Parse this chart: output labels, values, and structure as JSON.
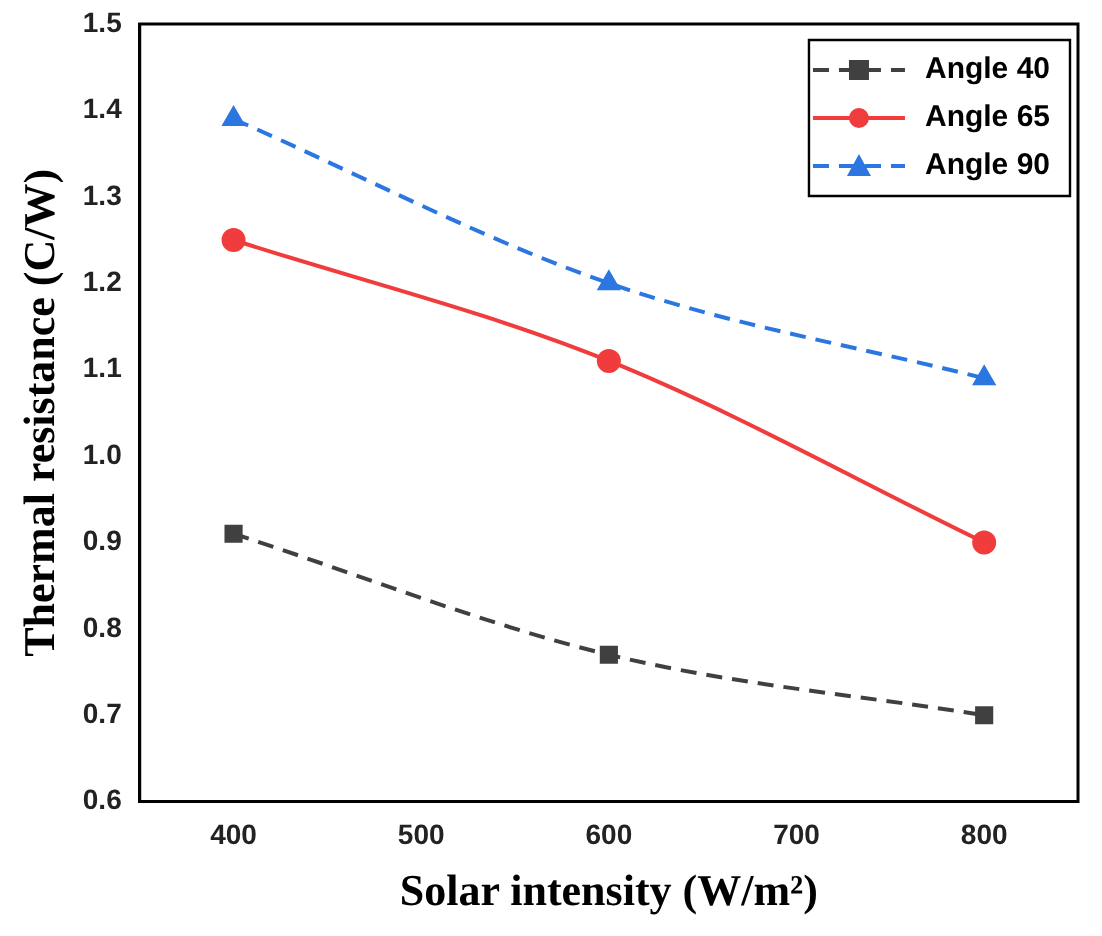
{
  "chart_data": {
    "type": "line",
    "xlabel": "Solar intensity (W/m²)",
    "ylabel": "Thermal resistance (C/W)",
    "x": [
      400,
      600,
      800
    ],
    "series": [
      {
        "name": "Angle 40",
        "color": "#404040",
        "values": [
          0.91,
          0.77,
          0.7
        ],
        "marker": "square",
        "line_style": "dashed"
      },
      {
        "name": "Angle 65",
        "color": "#f03c3c",
        "values": [
          1.25,
          1.11,
          0.9
        ],
        "marker": "circle",
        "line_style": "solid"
      },
      {
        "name": "Angle 90",
        "color": "#2b76e0",
        "values": [
          1.39,
          1.2,
          1.09
        ],
        "marker": "triangle",
        "line_style": "dashed"
      }
    ],
    "xlim": [
      350,
      850
    ],
    "xticks": [
      400,
      500,
      600,
      700,
      800
    ],
    "ylim": [
      0.6,
      1.5
    ],
    "yticks": [
      0.6,
      0.7,
      0.8,
      0.9,
      {
        "value": 1,
        "label": "1.0"
      },
      1.1,
      1.2,
      1.3,
      1.4,
      1.5
    ],
    "legend": "top right",
    "grid": false
  }
}
